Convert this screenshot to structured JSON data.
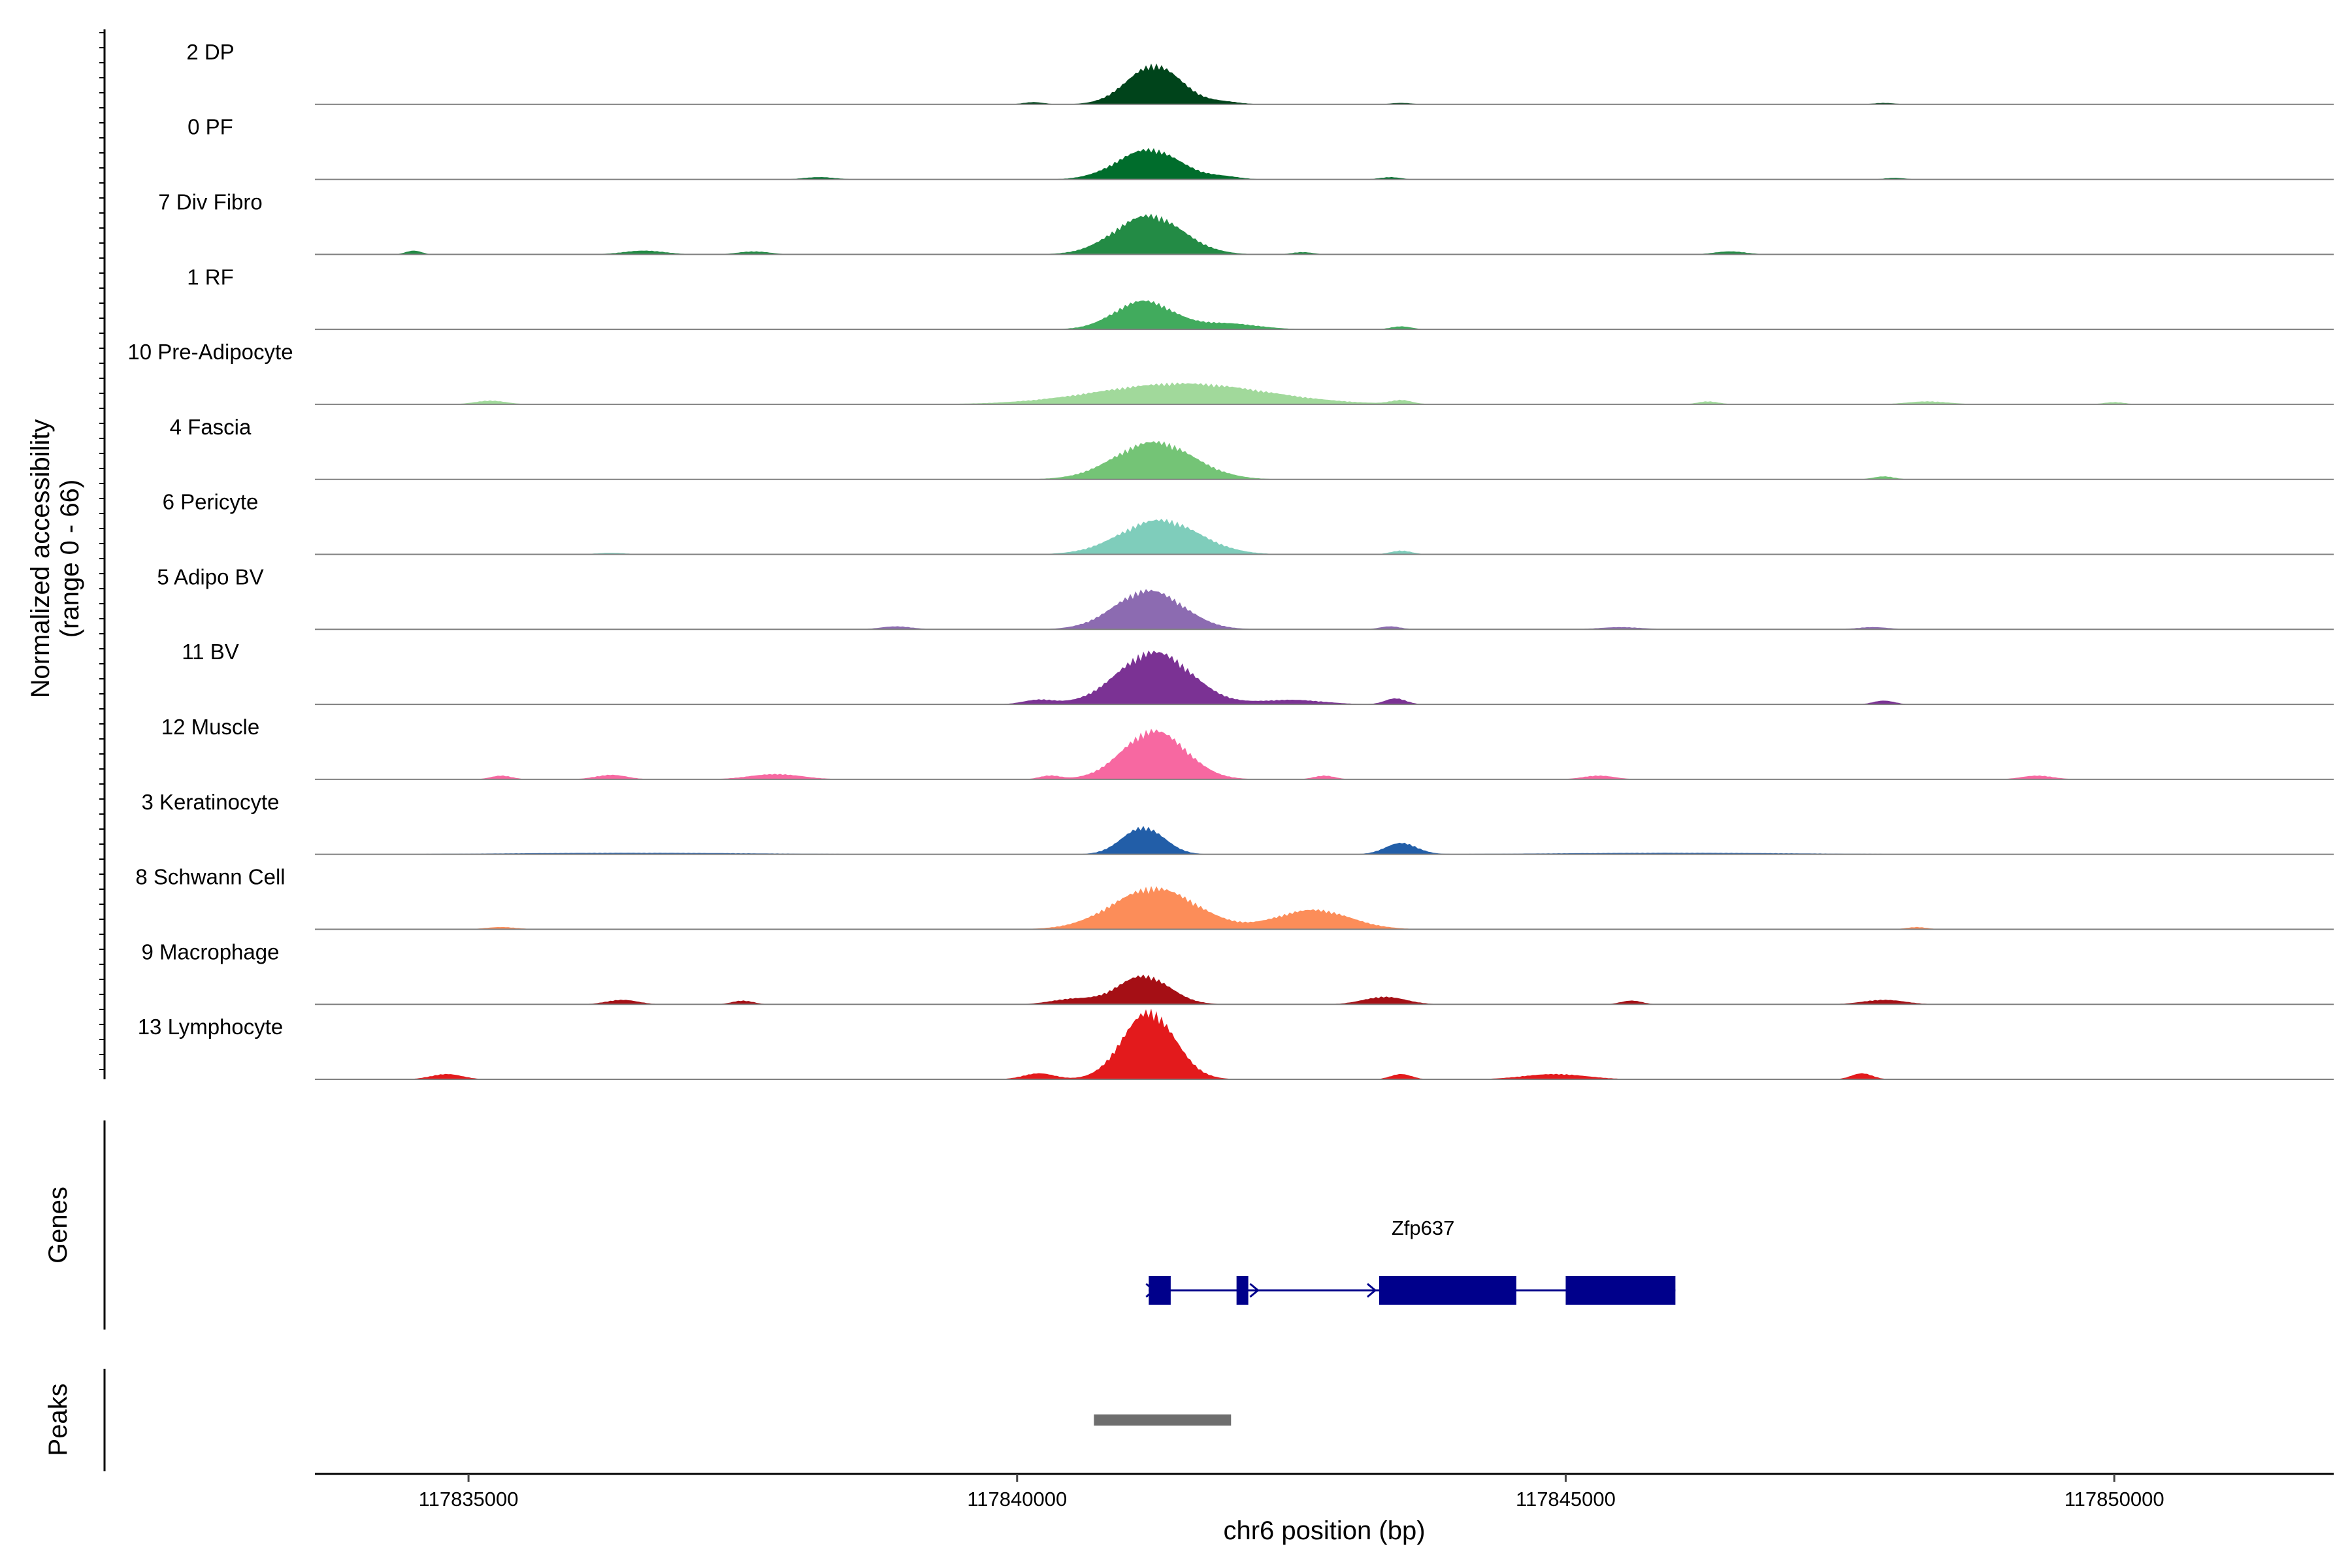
{
  "chart_data": {
    "type": "area",
    "coverage_ylabel_line1": "Normalized accessibility",
    "coverage_ylabel_line2": "(range 0 - 66)",
    "coverage_range": [
      0,
      66
    ],
    "genes_label": "Genes",
    "peaks_label": "Peaks",
    "xlabel": "chr6 position (bp)",
    "xlim": [
      117833600,
      117852000
    ],
    "x_ticks": [
      117835000,
      117840000,
      117845000,
      117850000
    ],
    "x_tick_labels": [
      "117835000",
      "117840000",
      "117845000",
      "117850000"
    ],
    "tracks": [
      {
        "name": "2 DP",
        "color": "#00441b",
        "peaks": [
          [
            117841250,
            52,
            520
          ],
          [
            117840150,
            3,
            200
          ],
          [
            117841900,
            3,
            300
          ],
          [
            117843500,
            2,
            200
          ],
          [
            117847900,
            2,
            200
          ]
        ]
      },
      {
        "name": "0 PF",
        "color": "#006d2c",
        "peaks": [
          [
            117841200,
            40,
            600
          ],
          [
            117838200,
            3,
            300
          ],
          [
            117841900,
            3,
            300
          ],
          [
            117843400,
            3,
            200
          ],
          [
            117848000,
            2,
            200
          ]
        ]
      },
      {
        "name": "7 Div Fibro",
        "color": "#238b45",
        "peaks": [
          [
            117841200,
            52,
            650
          ],
          [
            117834500,
            5,
            150
          ],
          [
            117836600,
            5,
            400
          ],
          [
            117837600,
            4,
            300
          ],
          [
            117846500,
            4,
            300
          ],
          [
            117842600,
            3,
            200
          ]
        ]
      },
      {
        "name": "1 RF",
        "color": "#41ab5d",
        "peaks": [
          [
            117841150,
            38,
            550
          ],
          [
            117841900,
            8,
            600
          ],
          [
            117843500,
            4,
            200
          ]
        ]
      },
      {
        "name": "10 Pre-Adipocyte",
        "color": "#a1d99b",
        "peaks": [
          [
            117841500,
            28,
            1600
          ],
          [
            117835200,
            5,
            300
          ],
          [
            117843500,
            5,
            200
          ],
          [
            117846300,
            4,
            200
          ],
          [
            117848300,
            4,
            400
          ],
          [
            117850000,
            3,
            200
          ]
        ]
      },
      {
        "name": "4 Fascia",
        "color": "#74c476",
        "peaks": [
          [
            117841250,
            50,
            750
          ],
          [
            117847900,
            4,
            200
          ]
        ]
      },
      {
        "name": "6 Pericyte",
        "color": "#7fcdbb",
        "peaks": [
          [
            117841300,
            46,
            750
          ],
          [
            117843500,
            5,
            200
          ],
          [
            117836300,
            2,
            300
          ]
        ]
      },
      {
        "name": "5 Adipo BV",
        "color": "#8c6bb1",
        "peaks": [
          [
            117841200,
            52,
            650
          ],
          [
            117838900,
            4,
            300
          ],
          [
            117843400,
            4,
            200
          ],
          [
            117845500,
            3,
            400
          ],
          [
            117847800,
            3,
            300
          ]
        ]
      },
      {
        "name": "11 BV",
        "color": "#7b3294",
        "peaks": [
          [
            117841250,
            70,
            700
          ],
          [
            117840200,
            6,
            300
          ],
          [
            117842500,
            6,
            600
          ],
          [
            117843450,
            8,
            200
          ],
          [
            117847900,
            5,
            200
          ]
        ]
      },
      {
        "name": "12 Muscle",
        "color": "#f768a1",
        "peaks": [
          [
            117841250,
            65,
            600
          ],
          [
            117835300,
            5,
            200
          ],
          [
            117836300,
            6,
            300
          ],
          [
            117837800,
            7,
            500
          ],
          [
            117840300,
            5,
            200
          ],
          [
            117842800,
            5,
            200
          ],
          [
            117845300,
            5,
            300
          ],
          [
            117849300,
            5,
            300
          ]
        ]
      },
      {
        "name": "3 Keratinocyte",
        "color": "#225ea8",
        "peaks": [
          [
            117841150,
            36,
            400
          ],
          [
            117843500,
            15,
            300
          ],
          [
            117836500,
            2,
            2500
          ],
          [
            117846000,
            2,
            2500
          ]
        ]
      },
      {
        "name": "8 Schwann Cell",
        "color": "#fc8d59",
        "peaks": [
          [
            117841250,
            55,
            800
          ],
          [
            117842700,
            26,
            700
          ],
          [
            117835300,
            3,
            300
          ],
          [
            117848200,
            3,
            200
          ]
        ]
      },
      {
        "name": "9 Macrophage",
        "color": "#a50f15",
        "peaks": [
          [
            117841150,
            38,
            500
          ],
          [
            117840500,
            7,
            400
          ],
          [
            117843350,
            10,
            400
          ],
          [
            117836400,
            6,
            300
          ],
          [
            117837500,
            5,
            200
          ],
          [
            117845600,
            5,
            200
          ],
          [
            117847900,
            6,
            400
          ]
        ]
      },
      {
        "name": "13 Lymphocyte",
        "color": "#e31a1c",
        "peaks": [
          [
            117841200,
            90,
            500
          ],
          [
            117834800,
            7,
            300
          ],
          [
            117840200,
            8,
            300
          ],
          [
            117843500,
            7,
            200
          ],
          [
            117844900,
            7,
            600
          ],
          [
            117847700,
            8,
            200
          ]
        ]
      }
    ],
    "genes": [
      {
        "name": "Zfp637",
        "color": "#00008b",
        "strand": "+",
        "start": 117841200,
        "end": 117846000,
        "exons": [
          [
            117841200,
            117841400
          ],
          [
            117842000,
            117842100
          ],
          [
            117843300,
            117844550
          ],
          [
            117845000,
            117846000
          ]
        ]
      }
    ],
    "peaks": [
      {
        "start": 117840700,
        "end": 117841950,
        "color": "#6e6e6e"
      }
    ]
  }
}
